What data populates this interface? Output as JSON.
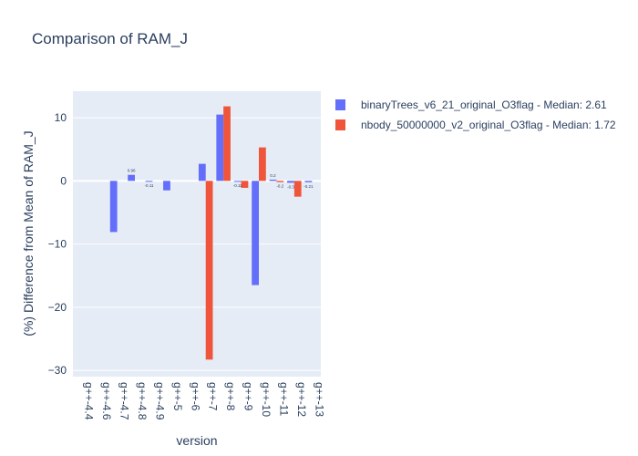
{
  "chart_data": {
    "type": "bar",
    "title": "Comparison of RAM_J",
    "xlabel": "version",
    "ylabel": "(%) Difference from Mean of RAM_J",
    "categories": [
      "g++-4.4",
      "g++-4.6",
      "g++-4.7",
      "g++-4.8",
      "g++-4.9",
      "g++-5",
      "g++-6",
      "g++-7",
      "g++-8",
      "g++-9",
      "g++-10",
      "g++-11",
      "g++-12",
      "g++-13"
    ],
    "ylim": [
      -31,
      14.2
    ],
    "yticks": [
      10,
      0,
      -10,
      -20,
      -30
    ],
    "ytick_labels": [
      "10",
      "0",
      "−10",
      "−20",
      "−30"
    ],
    "grid": true,
    "legend_position": "right",
    "series": [
      {
        "name": "binaryTrees_v6_21_original_O3flag - Median: 2.61",
        "color": "#636efa",
        "values": [
          null,
          null,
          -8.1,
          0.96,
          -0.11,
          -1.5,
          null,
          2.7,
          10.5,
          -0.11,
          -16.5,
          0.2,
          -0.3,
          -0.21
        ]
      },
      {
        "name": "nbody_50000000_v2_original_O3flag - Median: 1.72",
        "color": "#ef553b",
        "values": [
          null,
          null,
          null,
          null,
          null,
          null,
          null,
          -28.3,
          11.8,
          -1.1,
          5.3,
          -0.2,
          -2.5,
          null
        ]
      }
    ],
    "data_labels": [
      {
        "category": "g++-4.8",
        "series": 0,
        "text": "0.96"
      },
      {
        "category": "g++-4.9",
        "series": 0,
        "text": "-0.11"
      },
      {
        "category": "g++-9",
        "series": 0,
        "text": "-0.11"
      },
      {
        "category": "g++-11",
        "series": 0,
        "text": "0.2"
      },
      {
        "category": "g++-11",
        "series": 1,
        "text": "-0.2"
      },
      {
        "category": "g++-12",
        "series": 0,
        "text": "-0.3"
      },
      {
        "category": "g++-13",
        "series": 0,
        "text": "-0.21"
      }
    ]
  }
}
